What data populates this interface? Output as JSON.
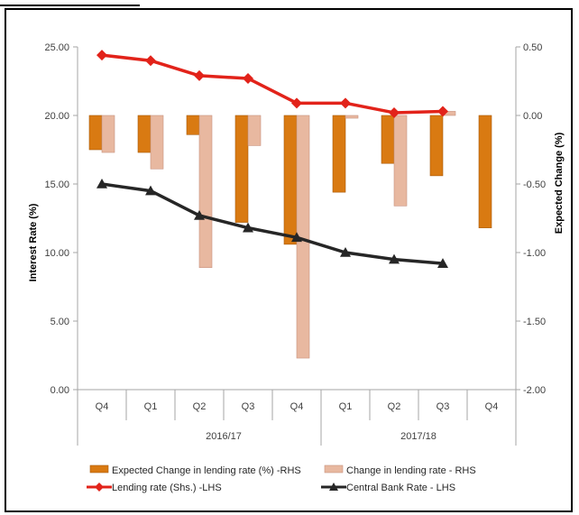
{
  "chart_data": {
    "type": "bar",
    "categories": [
      "Q4",
      "Q1",
      "Q2",
      "Q3",
      "Q4",
      "Q1",
      "Q2",
      "Q3",
      "Q4"
    ],
    "groups": [
      {
        "label": "2016/17",
        "start": 1,
        "end": 4
      },
      {
        "label": "2017/18",
        "start": 5,
        "end": 8
      }
    ],
    "ylabel_left": "Interest Rate (%)",
    "ylabel_right": "Expected  Change (%)",
    "ylim_left": [
      0,
      25
    ],
    "ylim_right": [
      -2,
      0.5
    ],
    "yticks_left": [
      "0.00",
      "5.00",
      "10.00",
      "15.00",
      "20.00",
      "25.00"
    ],
    "yticks_right": [
      "-2.00",
      "-1.50",
      "-1.00",
      "-0.50",
      "0.00",
      "0.50"
    ],
    "grid": false,
    "legend_position": "bottom",
    "series": [
      {
        "name": "Expected Change in lending rate (%) -RHS",
        "kind": "bar",
        "axis": "right",
        "color": "#d97a12",
        "values": [
          -0.25,
          -0.27,
          -0.14,
          -0.78,
          -0.94,
          -0.56,
          -0.35,
          -0.44,
          -0.82
        ]
      },
      {
        "name": "Change in lending rate - RHS",
        "kind": "bar",
        "axis": "right",
        "color": "#e8b8a0",
        "values": [
          -0.27,
          -0.39,
          -1.11,
          -0.22,
          -1.77,
          -0.02,
          -0.66,
          0.03,
          null
        ]
      },
      {
        "name": "Lending rate (Shs.) -LHS",
        "kind": "line",
        "axis": "left",
        "color": "#e2231a",
        "marker": "diamond",
        "values": [
          24.4,
          24.0,
          22.9,
          22.7,
          20.9,
          20.9,
          20.2,
          20.3,
          null
        ]
      },
      {
        "name": "Central Bank Rate - LHS",
        "kind": "line",
        "axis": "left",
        "color": "#262626",
        "marker": "triangle",
        "values": [
          15.0,
          14.5,
          12.7,
          11.8,
          11.1,
          10.0,
          9.5,
          9.2,
          null
        ]
      }
    ]
  }
}
